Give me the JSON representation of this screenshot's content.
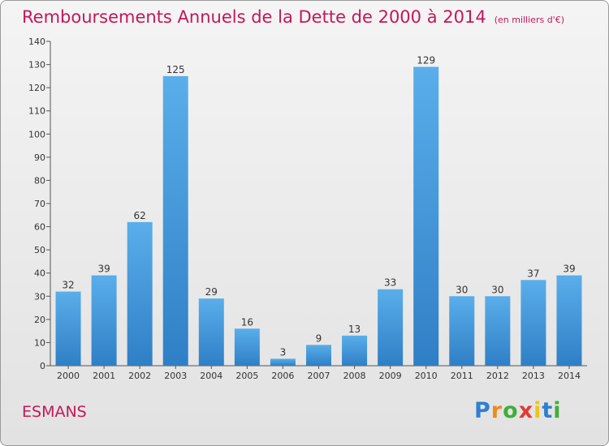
{
  "title": "Remboursements Annuels de la Dette de 2000 à 2014",
  "subtitle": "(en milliers d'€)",
  "commune": "ESMANS",
  "logo": {
    "text": "Proxiti",
    "letters": [
      {
        "ch": "P",
        "color": "#2f7fd1"
      },
      {
        "ch": "r",
        "color": "#f08a1c"
      },
      {
        "ch": "o",
        "color": "#3fae3a"
      },
      {
        "ch": "x",
        "color": "#e53935"
      },
      {
        "ch": "i",
        "color": "#f2c21b"
      },
      {
        "ch": "t",
        "color": "#2f7fd1"
      },
      {
        "ch": "i",
        "color": "#3fae3a"
      }
    ]
  },
  "colors": {
    "accent": "#c2185b",
    "bar_light": "#5aaeea",
    "bar_dark": "#2f7fc6",
    "axis": "#555555"
  },
  "chart_data": {
    "type": "bar",
    "categories": [
      "2000",
      "2001",
      "2002",
      "2003",
      "2004",
      "2005",
      "2006",
      "2007",
      "2008",
      "2009",
      "2010",
      "2011",
      "2012",
      "2013",
      "2014"
    ],
    "values": [
      32,
      39,
      62,
      125,
      29,
      16,
      3,
      9,
      13,
      33,
      129,
      30,
      30,
      37,
      39
    ],
    "title": "Remboursements Annuels de la Dette de 2000 à 2014",
    "subtitle": "(en milliers d'€)",
    "xlabel": "",
    "ylabel": "",
    "ylim": [
      0,
      140
    ],
    "yticks": [
      0,
      10,
      20,
      30,
      40,
      50,
      60,
      70,
      80,
      90,
      100,
      110,
      120,
      130,
      140
    ],
    "grid": false,
    "legend": "none"
  }
}
